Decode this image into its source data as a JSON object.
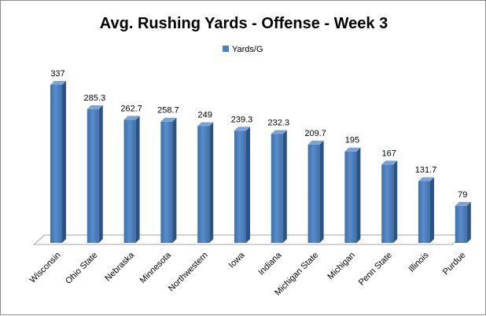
{
  "chart_data": {
    "type": "bar",
    "title": "Avg. Rushing Yards - Offense - Week 3",
    "legend": {
      "position": "top",
      "entries": [
        "Yards/G"
      ]
    },
    "categories": [
      "Wisconsin",
      "Ohio State",
      "Nebraska",
      "Minnesota",
      "Northwestern",
      "Iowa",
      "Indiana",
      "Michigan State",
      "Michigan",
      "Penn State",
      "Illinois",
      "Purdue"
    ],
    "series": [
      {
        "name": "Yards/G",
        "values": [
          337,
          285.3,
          262.7,
          258.7,
          249,
          239.3,
          232.3,
          209.7,
          195,
          167,
          131.7,
          79
        ],
        "color": "#4f81bd"
      }
    ],
    "data_labels": [
      "337",
      "285.3",
      "262.7",
      "258.7",
      "249",
      "239.3",
      "232.3",
      "209.7",
      "195",
      "167",
      "131.7",
      "79"
    ],
    "ylim": [
      0,
      350
    ],
    "grid": false,
    "style": "3d-cylinder-like bars"
  }
}
